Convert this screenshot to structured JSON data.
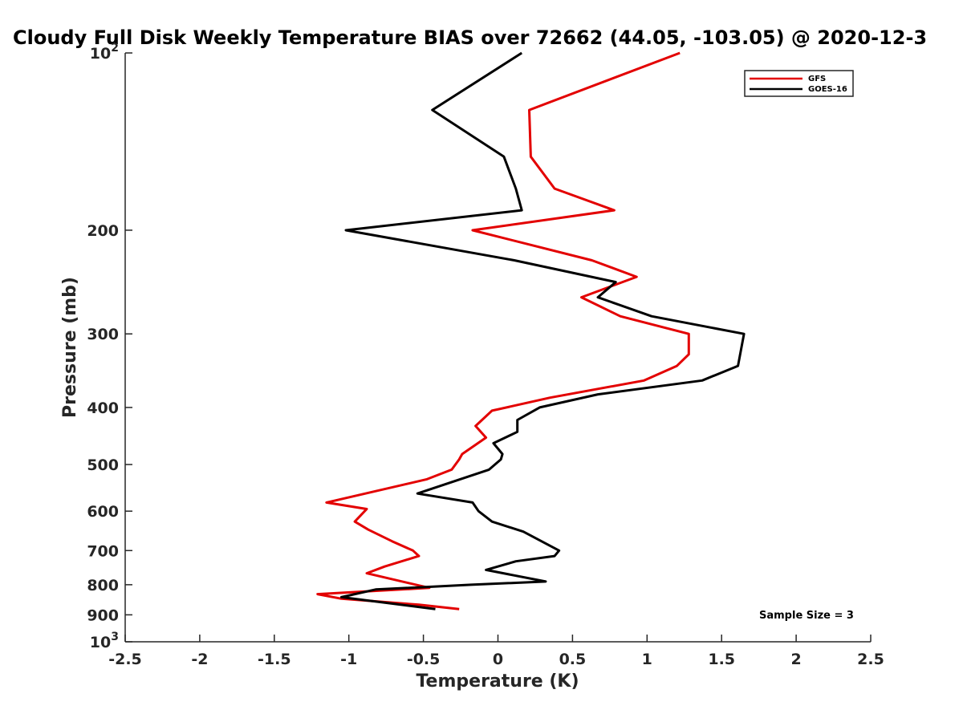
{
  "chart_data": {
    "type": "line",
    "title": "Cloudy Full Disk Weekly Temperature BIAS over 72662 (44.05, -103.05) @ 2020-12-3",
    "xlabel": "Temperature (K)",
    "ylabel": "Pressure (mb)",
    "xlim": [
      -2.5,
      2.5
    ],
    "ylim": [
      1000,
      100
    ],
    "y_scale": "log",
    "y_reversed": true,
    "x_ticks": [
      "-2.5",
      "-2",
      "-1.5",
      "-1",
      "-0.5",
      "0",
      "0.5",
      "1",
      "1.5",
      "2",
      "2.5"
    ],
    "x_tick_values": [
      -2.5,
      -2,
      -1.5,
      -1,
      -0.5,
      0,
      0.5,
      1,
      1.5,
      2,
      2.5
    ],
    "y_ticks": [
      {
        "value": 100,
        "base": "10",
        "exp": "2"
      },
      {
        "value": 200,
        "label": "200"
      },
      {
        "value": 300,
        "label": "300"
      },
      {
        "value": 400,
        "label": "400"
      },
      {
        "value": 500,
        "label": "500"
      },
      {
        "value": 600,
        "label": "600"
      },
      {
        "value": 700,
        "label": "700"
      },
      {
        "value": 800,
        "label": "800"
      },
      {
        "value": 900,
        "label": "900"
      },
      {
        "value": 1000,
        "base": "10",
        "exp": "3"
      }
    ],
    "legend_location": "top-right",
    "grid": false,
    "annotation": "Sample Size = 3",
    "series": [
      {
        "name": "GFS",
        "color": "#e30000",
        "points": [
          [
            1.22,
            100
          ],
          [
            0.21,
            125
          ],
          [
            0.22,
            150
          ],
          [
            0.38,
            170
          ],
          [
            0.78,
            185
          ],
          [
            -0.17,
            200
          ],
          [
            0.63,
            225
          ],
          [
            0.93,
            240
          ],
          [
            0.56,
            260
          ],
          [
            0.82,
            280
          ],
          [
            1.28,
            300
          ],
          [
            1.28,
            325
          ],
          [
            1.2,
            340
          ],
          [
            0.98,
            360
          ],
          [
            0.35,
            385
          ],
          [
            -0.04,
            405
          ],
          [
            -0.15,
            430
          ],
          [
            -0.08,
            450
          ],
          [
            -0.24,
            480
          ],
          [
            -0.26,
            490
          ],
          [
            -0.31,
            510
          ],
          [
            -0.48,
            530
          ],
          [
            -1.15,
            580
          ],
          [
            -0.88,
            595
          ],
          [
            -0.96,
            625
          ],
          [
            -0.87,
            645
          ],
          [
            -0.71,
            675
          ],
          [
            -0.57,
            700
          ],
          [
            -0.53,
            715
          ],
          [
            -0.76,
            745
          ],
          [
            -0.88,
            765
          ],
          [
            -0.46,
            810
          ],
          [
            -1.21,
            830
          ],
          [
            -1.05,
            845
          ],
          [
            -0.53,
            865
          ],
          [
            -0.26,
            880
          ]
        ]
      },
      {
        "name": "GOES-16",
        "color": "#000000",
        "points": [
          [
            0.16,
            100
          ],
          [
            -0.44,
            125
          ],
          [
            0.04,
            150
          ],
          [
            0.12,
            170
          ],
          [
            0.16,
            185
          ],
          [
            -1.02,
            200
          ],
          [
            0.11,
            225
          ],
          [
            0.79,
            245
          ],
          [
            0.67,
            260
          ],
          [
            1.03,
            280
          ],
          [
            1.65,
            300
          ],
          [
            1.61,
            340
          ],
          [
            1.37,
            360
          ],
          [
            0.67,
            380
          ],
          [
            0.28,
            400
          ],
          [
            0.13,
            420
          ],
          [
            0.13,
            440
          ],
          [
            -0.03,
            460
          ],
          [
            0.03,
            480
          ],
          [
            0.02,
            490
          ],
          [
            -0.06,
            510
          ],
          [
            -0.54,
            560
          ],
          [
            -0.17,
            580
          ],
          [
            -0.13,
            600
          ],
          [
            -0.04,
            625
          ],
          [
            0.17,
            650
          ],
          [
            0.41,
            700
          ],
          [
            0.38,
            715
          ],
          [
            0.12,
            730
          ],
          [
            -0.08,
            755
          ],
          [
            0.32,
            790
          ],
          [
            -0.18,
            800
          ],
          [
            -0.82,
            815
          ],
          [
            -1.05,
            840
          ],
          [
            -0.42,
            880
          ]
        ]
      }
    ]
  }
}
